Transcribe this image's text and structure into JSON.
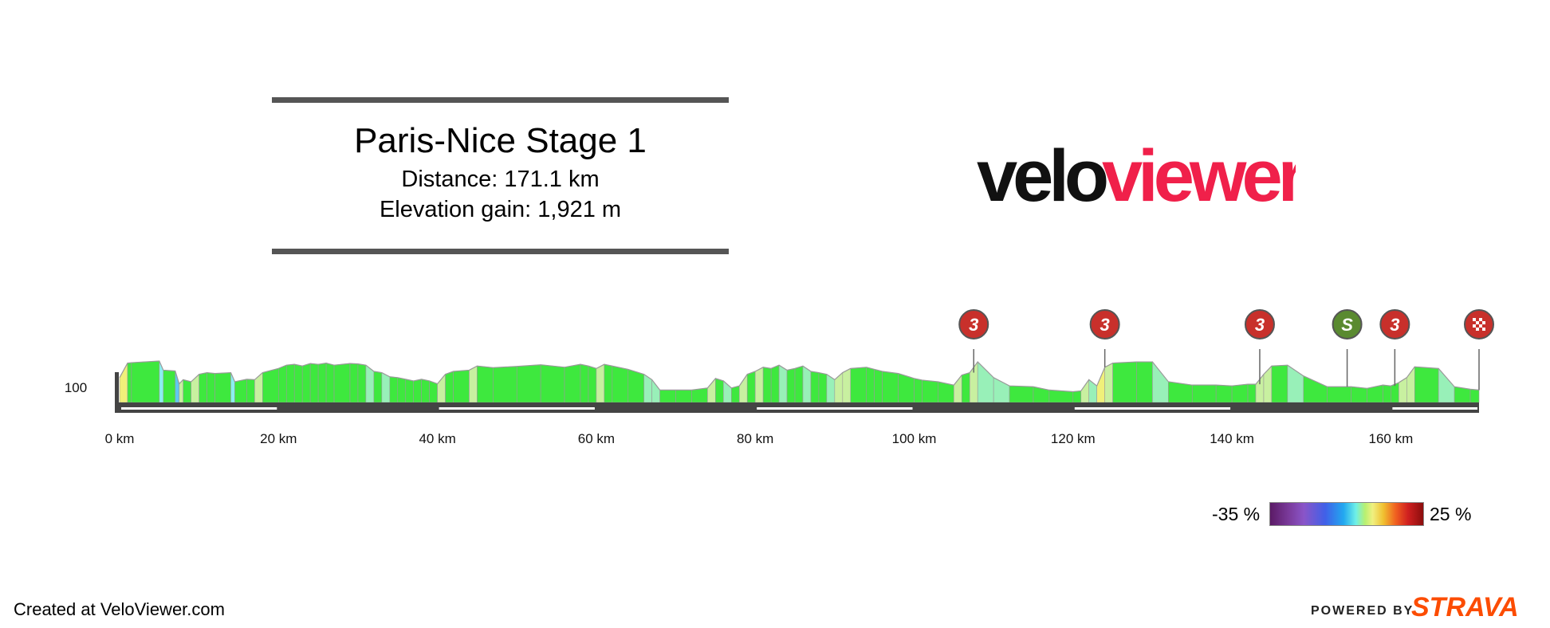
{
  "header": {
    "title": "Paris-Nice Stage 1",
    "distance": "Distance: 171.1 km",
    "elevation": "Elevation gain: 1,921 m"
  },
  "logo": {
    "part1": "velo",
    "part2": "viewer",
    "colors": {
      "velo": "#111111",
      "viewer": "#f0204a"
    }
  },
  "footer": {
    "created": "Created at VeloViewer.com",
    "powered": "POWERED BY",
    "strava": "STRAVA"
  },
  "legend": {
    "min_label": "-35 %",
    "max_label": "25 %"
  },
  "chart_data": {
    "type": "area",
    "title": "",
    "xlabel": "",
    "ylabel": "",
    "x_ticks": [
      "0 km",
      "20 km",
      "40 km",
      "60 km",
      "80 km",
      "100 km",
      "120 km",
      "140 km",
      "160 km"
    ],
    "y_ticks": [
      "100"
    ],
    "xlim": [
      0,
      171.1
    ],
    "ylim": [
      0,
      160
    ],
    "distance_km": [
      0,
      1,
      1.5,
      5,
      5.5,
      7,
      7.5,
      8,
      9,
      10,
      11,
      12,
      14,
      14.5,
      16,
      17,
      18,
      20,
      21,
      22,
      23,
      24,
      25,
      26,
      27,
      29,
      30,
      31,
      32,
      33,
      34,
      35,
      36,
      37,
      38,
      39,
      40,
      41,
      42,
      44,
      45,
      47,
      50,
      53,
      56,
      58,
      59,
      60,
      61,
      62,
      64,
      66,
      67,
      68,
      70,
      72,
      74,
      75,
      76,
      77,
      78,
      79,
      80,
      81,
      82,
      83,
      84,
      85,
      86,
      87,
      88,
      89,
      90,
      91,
      92,
      94,
      95,
      96,
      98,
      100,
      101,
      103,
      105,
      106,
      107,
      108,
      110,
      112,
      115,
      117,
      120,
      121,
      122,
      123,
      124,
      125,
      128,
      130,
      132,
      135,
      138,
      140,
      142,
      143,
      144,
      145,
      147,
      149,
      152,
      155,
      157,
      159,
      160,
      161,
      162,
      163,
      166,
      168,
      170,
      171.1
    ],
    "elevation_m": [
      60,
      95,
      96,
      100,
      78,
      76,
      45,
      55,
      50,
      68,
      72,
      70,
      72,
      50,
      56,
      55,
      72,
      82,
      90,
      92,
      88,
      94,
      92,
      95,
      90,
      94,
      93,
      90,
      75,
      72,
      62,
      60,
      56,
      52,
      56,
      52,
      45,
      68,
      75,
      78,
      88,
      84,
      87,
      91,
      85,
      92,
      88,
      82,
      92,
      88,
      80,
      68,
      55,
      30,
      30,
      30,
      35,
      58,
      52,
      35,
      40,
      68,
      75,
      85,
      82,
      90,
      78,
      82,
      88,
      75,
      72,
      68,
      55,
      72,
      82,
      85,
      80,
      75,
      70,
      58,
      54,
      50,
      42,
      66,
      72,
      98,
      60,
      40,
      38,
      30,
      26,
      28,
      55,
      40,
      85,
      95,
      98,
      98,
      50,
      42,
      42,
      40,
      44,
      44,
      68,
      88,
      90,
      64,
      38,
      38,
      34,
      42,
      40,
      48,
      60,
      86,
      82,
      38,
      32,
      30,
      32
    ],
    "climbs": [
      {
        "km": 107.5,
        "category": "3"
      },
      {
        "km": 124,
        "category": "3"
      },
      {
        "km": 143.5,
        "category": "3"
      },
      {
        "km": 154.5,
        "category": "S"
      },
      {
        "km": 160.5,
        "category": "3"
      },
      {
        "km": 171.1,
        "category": "finish"
      }
    ],
    "gradient_scale": {
      "min": -35,
      "max": 25,
      "unit": "%"
    },
    "colors": {
      "climb": "#c8302b",
      "sprint": "#5a8a30",
      "finish": "#c8302b",
      "axis": "#444444"
    }
  }
}
